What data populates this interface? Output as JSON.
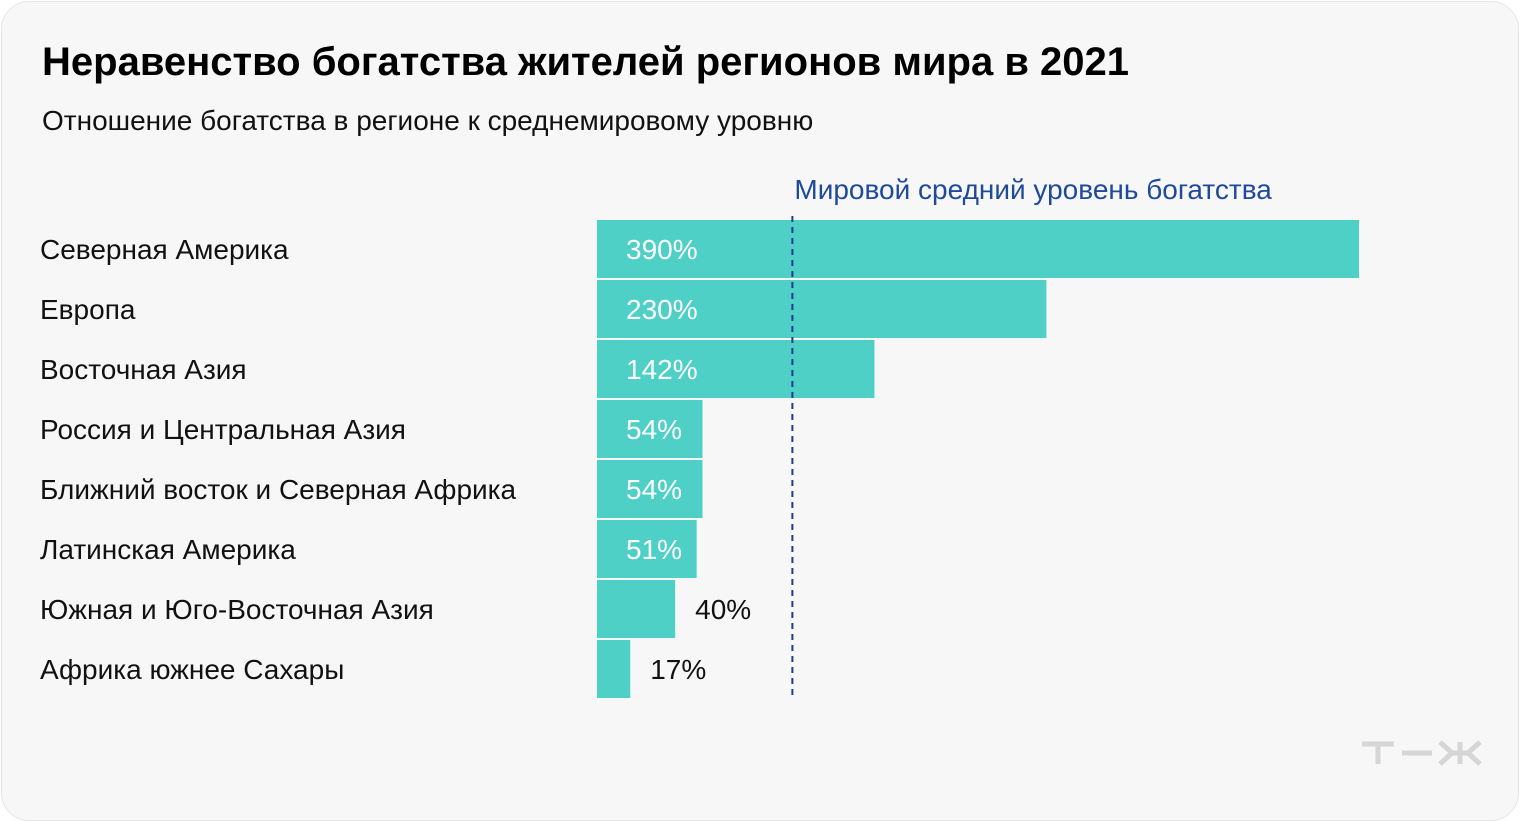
{
  "title": "Неравенство богатства жителей регионов мира в 2021",
  "subtitle": "Отношение богатства в регионе к среднемировому уровню",
  "colors": {
    "bar": "#4fd0c6",
    "reference_line": "#1f3a8f",
    "reference_label": "#1f4a9a",
    "label_inside": "#ffffff",
    "label_outside": "#111111",
    "logo": "#d6d6d6"
  },
  "logo_icon": "tzh-logo",
  "chart_data": {
    "type": "bar",
    "orientation": "horizontal",
    "categories": [
      "Северная Америка",
      "Европа",
      "Восточная Азия",
      "Россия и Центральная Азия",
      "Ближний восток и Северная Африка",
      "Латинская Америка",
      "Южная и Юго-Восточная Азия",
      "Африка южнее Сахары"
    ],
    "values": [
      390,
      230,
      142,
      54,
      54,
      51,
      40,
      17
    ],
    "value_labels": [
      "390%",
      "230%",
      "142%",
      "54%",
      "54%",
      "51%",
      "40%",
      "17%"
    ],
    "unit": "%",
    "xlim": [
      0,
      390
    ],
    "reference_line": {
      "value": 100,
      "label": "Мировой средний уровень богатства"
    },
    "grid": false,
    "legend": "none"
  }
}
